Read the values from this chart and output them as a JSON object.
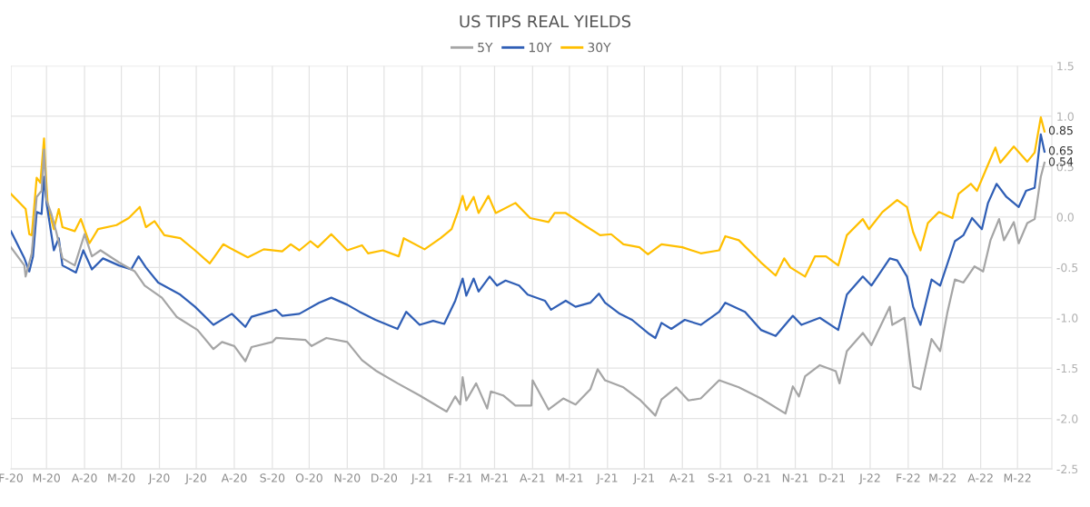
{
  "chart_data": {
    "type": "line",
    "title": "US TIPS REAL YIELDS",
    "legend": "top",
    "grid": true,
    "marker": "none",
    "line_style": "solid",
    "xlim": [
      "2020-02-01",
      "2022-05-29"
    ],
    "xticks": [
      {
        "value": "2020-02-01",
        "label": "F-20"
      },
      {
        "value": "2020-03-01",
        "label": "M-20"
      },
      {
        "value": "2020-04-01",
        "label": "A-20"
      },
      {
        "value": "2020-05-01",
        "label": "M-20"
      },
      {
        "value": "2020-06-01",
        "label": "J-20"
      },
      {
        "value": "2020-07-01",
        "label": "J-20"
      },
      {
        "value": "2020-08-01",
        "label": "A-20"
      },
      {
        "value": "2020-09-01",
        "label": "S-20"
      },
      {
        "value": "2020-10-01",
        "label": "O-20"
      },
      {
        "value": "2020-11-01",
        "label": "N-20"
      },
      {
        "value": "2020-12-01",
        "label": "D-20"
      },
      {
        "value": "2021-01-01",
        "label": "J-21"
      },
      {
        "value": "2021-02-01",
        "label": "F-21"
      },
      {
        "value": "2021-03-01",
        "label": "M-21"
      },
      {
        "value": "2021-04-01",
        "label": "A-21"
      },
      {
        "value": "2021-05-01",
        "label": "M-21"
      },
      {
        "value": "2021-06-01",
        "label": "J-21"
      },
      {
        "value": "2021-07-01",
        "label": "J-21"
      },
      {
        "value": "2021-08-01",
        "label": "A-21"
      },
      {
        "value": "2021-09-01",
        "label": "S-21"
      },
      {
        "value": "2021-10-01",
        "label": "O-21"
      },
      {
        "value": "2021-11-01",
        "label": "N-21"
      },
      {
        "value": "2021-12-01",
        "label": "D-21"
      },
      {
        "value": "2022-01-01",
        "label": "J-22"
      },
      {
        "value": "2022-02-01",
        "label": "F-22"
      },
      {
        "value": "2022-03-01",
        "label": "M-22"
      },
      {
        "value": "2022-04-01",
        "label": "A-22"
      },
      {
        "value": "2022-05-01",
        "label": "M-22"
      }
    ],
    "ylim": [
      -2.5,
      1.5
    ],
    "yticks": [
      {
        "value": -2.5,
        "label": "-2.5"
      },
      {
        "value": -2,
        "label": "-2.0"
      },
      {
        "value": -1.5,
        "label": "-1.5"
      },
      {
        "value": -1,
        "label": "-1.0"
      },
      {
        "value": -0.5,
        "label": "-0.5"
      },
      {
        "value": 0,
        "label": "0.0"
      },
      {
        "value": 0.5,
        "label": "0.5"
      },
      {
        "value": 1,
        "label": "1.0"
      },
      {
        "value": 1.5,
        "label": "1.5"
      }
    ],
    "annotations": [
      {
        "text": "0.85",
        "x": "2022-05-23",
        "y": 0.85
      },
      {
        "text": "0.65",
        "x": "2022-05-23",
        "y": 0.65
      },
      {
        "text": "0.54",
        "x": "2022-05-23",
        "y": 0.54
      }
    ],
    "series": [
      {
        "name": "5Y",
        "color": "#a5a5a5",
        "x": [
          "2020-02-01",
          "2020-02-12",
          "2020-02-13",
          "2020-02-18",
          "2020-02-22",
          "2020-02-26",
          "2020-02-28",
          "2020-03-01",
          "2020-03-05",
          "2020-03-09",
          "2020-03-14",
          "2020-03-24",
          "2020-04-01",
          "2020-04-07",
          "2020-04-14",
          "2020-04-29",
          "2020-05-12",
          "2020-05-20",
          "2020-06-03",
          "2020-06-15",
          "2020-07-02",
          "2020-07-15",
          "2020-07-22",
          "2020-08-01",
          "2020-08-10",
          "2020-08-15",
          "2020-09-01",
          "2020-09-04",
          "2020-09-28",
          "2020-10-03",
          "2020-10-15",
          "2020-11-01",
          "2020-11-13",
          "2020-11-25",
          "2020-12-12",
          "2020-12-30",
          "2021-01-21",
          "2021-01-28",
          "2021-02-01",
          "2021-02-03",
          "2021-02-06",
          "2021-02-14",
          "2021-02-23",
          "2021-02-26",
          "2021-03-08",
          "2021-03-18",
          "2021-03-31",
          "2021-04-01",
          "2021-04-14",
          "2021-04-26",
          "2021-05-06",
          "2021-05-18",
          "2021-05-24",
          "2021-05-30",
          "2021-06-14",
          "2021-06-28",
          "2021-07-10",
          "2021-07-15",
          "2021-07-27",
          "2021-08-06",
          "2021-08-16",
          "2021-08-31",
          "2021-09-16",
          "2021-10-04",
          "2021-10-24",
          "2021-10-30",
          "2021-11-04",
          "2021-11-09",
          "2021-11-21",
          "2021-12-04",
          "2021-12-07",
          "2021-12-13",
          "2021-12-26",
          "2022-01-02",
          "2022-01-17",
          "2022-01-19",
          "2022-01-29",
          "2022-02-05",
          "2022-02-11",
          "2022-02-20",
          "2022-02-27",
          "2022-03-05",
          "2022-03-11",
          "2022-03-18",
          "2022-03-27",
          "2022-04-03",
          "2022-04-09",
          "2022-04-16",
          "2022-04-20",
          "2022-04-28",
          "2022-05-02",
          "2022-05-09",
          "2022-05-15",
          "2022-05-20",
          "2022-05-23"
        ],
        "values": [
          -0.3,
          -0.48,
          -0.59,
          -0.36,
          0.2,
          0.26,
          0.67,
          0.17,
          0.03,
          -0.15,
          -0.41,
          -0.48,
          -0.17,
          -0.39,
          -0.33,
          -0.45,
          -0.54,
          -0.68,
          -0.8,
          -0.99,
          -1.12,
          -1.31,
          -1.24,
          -1.28,
          -1.43,
          -1.29,
          -1.24,
          -1.2,
          -1.22,
          -1.28,
          -1.2,
          -1.24,
          -1.42,
          -1.53,
          -1.65,
          -1.77,
          -1.93,
          -1.78,
          -1.86,
          -1.59,
          -1.82,
          -1.65,
          -1.9,
          -1.73,
          -1.77,
          -1.87,
          -1.87,
          -1.62,
          -1.91,
          -1.8,
          -1.86,
          -1.71,
          -1.51,
          -1.62,
          -1.69,
          -1.82,
          -1.97,
          -1.81,
          -1.69,
          -1.82,
          -1.8,
          -1.62,
          -1.69,
          -1.8,
          -1.95,
          -1.68,
          -1.78,
          -1.58,
          -1.47,
          -1.53,
          -1.65,
          -1.33,
          -1.15,
          -1.27,
          -0.89,
          -1.07,
          -1.0,
          -1.68,
          -1.71,
          -1.21,
          -1.33,
          -0.94,
          -0.62,
          -0.65,
          -0.49,
          -0.54,
          -0.23,
          -0.02,
          -0.23,
          -0.05,
          -0.26,
          -0.06,
          -0.02,
          0.4,
          0.54
        ]
      },
      {
        "name": "10Y",
        "color": "#2f5eb5",
        "x": [
          "2020-02-01",
          "2020-02-12",
          "2020-02-16",
          "2020-02-19",
          "2020-02-22",
          "2020-02-26",
          "2020-02-28",
          "2020-03-01",
          "2020-03-07",
          "2020-03-11",
          "2020-03-14",
          "2020-03-25",
          "2020-03-31",
          "2020-04-07",
          "2020-04-16",
          "2020-04-29",
          "2020-05-09",
          "2020-05-15",
          "2020-05-21",
          "2020-05-31",
          "2020-06-18",
          "2020-06-30",
          "2020-07-15",
          "2020-07-30",
          "2020-08-10",
          "2020-08-15",
          "2020-09-04",
          "2020-09-09",
          "2020-09-23",
          "2020-10-09",
          "2020-10-19",
          "2020-11-01",
          "2020-11-11",
          "2020-11-24",
          "2020-12-12",
          "2020-12-19",
          "2020-12-30",
          "2021-01-10",
          "2021-01-19",
          "2021-01-28",
          "2021-02-03",
          "2021-02-06",
          "2021-02-12",
          "2021-02-16",
          "2021-02-25",
          "2021-03-03",
          "2021-03-10",
          "2021-03-21",
          "2021-03-28",
          "2021-04-11",
          "2021-04-16",
          "2021-04-28",
          "2021-05-06",
          "2021-05-18",
          "2021-05-25",
          "2021-05-30",
          "2021-06-11",
          "2021-06-21",
          "2021-07-05",
          "2021-07-10",
          "2021-07-15",
          "2021-07-23",
          "2021-08-03",
          "2021-08-16",
          "2021-08-31",
          "2021-09-05",
          "2021-09-21",
          "2021-10-04",
          "2021-10-16",
          "2021-10-30",
          "2021-11-06",
          "2021-11-21",
          "2021-12-06",
          "2021-12-13",
          "2021-12-26",
          "2022-01-02",
          "2022-01-17",
          "2022-01-23",
          "2022-01-31",
          "2022-02-05",
          "2022-02-11",
          "2022-02-20",
          "2022-02-27",
          "2022-03-11",
          "2022-03-18",
          "2022-03-25",
          "2022-04-02",
          "2022-04-07",
          "2022-04-14",
          "2022-04-22",
          "2022-05-02",
          "2022-05-08",
          "2022-05-15",
          "2022-05-20",
          "2022-05-23"
        ],
        "values": [
          -0.14,
          -0.41,
          -0.54,
          -0.39,
          0.05,
          0.03,
          0.4,
          0.14,
          -0.33,
          -0.21,
          -0.48,
          -0.55,
          -0.33,
          -0.52,
          -0.41,
          -0.48,
          -0.52,
          -0.39,
          -0.5,
          -0.65,
          -0.77,
          -0.89,
          -1.07,
          -0.96,
          -1.09,
          -0.99,
          -0.92,
          -0.98,
          -0.96,
          -0.85,
          -0.8,
          -0.87,
          -0.94,
          -1.02,
          -1.11,
          -0.94,
          -1.07,
          -1.03,
          -1.06,
          -0.83,
          -0.61,
          -0.78,
          -0.61,
          -0.74,
          -0.59,
          -0.68,
          -0.63,
          -0.68,
          -0.77,
          -0.83,
          -0.92,
          -0.83,
          -0.89,
          -0.85,
          -0.76,
          -0.85,
          -0.96,
          -1.02,
          -1.16,
          -1.2,
          -1.05,
          -1.11,
          -1.02,
          -1.07,
          -0.94,
          -0.85,
          -0.94,
          -1.12,
          -1.18,
          -0.98,
          -1.07,
          -1.0,
          -1.12,
          -0.77,
          -0.59,
          -0.68,
          -0.41,
          -0.43,
          -0.59,
          -0.89,
          -1.07,
          -0.62,
          -0.68,
          -0.24,
          -0.18,
          -0.01,
          -0.12,
          0.14,
          0.33,
          0.2,
          0.1,
          0.26,
          0.29,
          0.82,
          0.65
        ]
      },
      {
        "name": "30Y",
        "color": "#ffbf00",
        "x": [
          "2020-02-01",
          "2020-02-13",
          "2020-02-16",
          "2020-02-18",
          "2020-02-22",
          "2020-02-25",
          "2020-02-28",
          "2020-02-29",
          "2020-03-02",
          "2020-03-07",
          "2020-03-11",
          "2020-03-14",
          "2020-03-24",
          "2020-03-29",
          "2020-04-05",
          "2020-04-12",
          "2020-04-27",
          "2020-05-07",
          "2020-05-16",
          "2020-05-21",
          "2020-05-28",
          "2020-06-05",
          "2020-06-18",
          "2020-06-30",
          "2020-07-12",
          "2020-07-23",
          "2020-08-01",
          "2020-08-12",
          "2020-08-25",
          "2020-09-09",
          "2020-09-16",
          "2020-09-23",
          "2020-10-02",
          "2020-10-08",
          "2020-10-19",
          "2020-11-01",
          "2020-11-13",
          "2020-11-18",
          "2020-11-30",
          "2020-12-13",
          "2020-12-17",
          "2021-01-03",
          "2021-01-16",
          "2021-01-25",
          "2021-01-30",
          "2021-02-03",
          "2021-02-06",
          "2021-02-12",
          "2021-02-16",
          "2021-02-24",
          "2021-03-02",
          "2021-03-18",
          "2021-03-30",
          "2021-04-14",
          "2021-04-19",
          "2021-04-28",
          "2021-05-13",
          "2021-05-26",
          "2021-06-04",
          "2021-06-14",
          "2021-06-27",
          "2021-07-04",
          "2021-07-15",
          "2021-08-01",
          "2021-08-16",
          "2021-08-31",
          "2021-09-05",
          "2021-09-16",
          "2021-10-04",
          "2021-10-16",
          "2021-10-23",
          "2021-10-28",
          "2021-11-09",
          "2021-11-17",
          "2021-11-26",
          "2021-12-06",
          "2021-12-13",
          "2021-12-26",
          "2021-12-31",
          "2022-01-11",
          "2022-01-23",
          "2022-01-31",
          "2022-02-05",
          "2022-02-11",
          "2022-02-17",
          "2022-02-26",
          "2022-03-09",
          "2022-03-14",
          "2022-03-24",
          "2022-03-29",
          "2022-04-07",
          "2022-04-13",
          "2022-04-17",
          "2022-04-28",
          "2022-05-09",
          "2022-05-15",
          "2022-05-20",
          "2022-05-23"
        ],
        "values": [
          0.23,
          0.08,
          -0.17,
          -0.18,
          0.39,
          0.34,
          0.78,
          0.52,
          0.11,
          -0.12,
          0.08,
          -0.1,
          -0.14,
          -0.02,
          -0.26,
          -0.12,
          -0.08,
          -0.01,
          0.1,
          -0.1,
          -0.04,
          -0.18,
          -0.21,
          -0.33,
          -0.46,
          -0.27,
          -0.33,
          -0.4,
          -0.32,
          -0.34,
          -0.27,
          -0.33,
          -0.24,
          -0.3,
          -0.17,
          -0.33,
          -0.28,
          -0.36,
          -0.33,
          -0.39,
          -0.21,
          -0.32,
          -0.21,
          -0.12,
          0.05,
          0.21,
          0.07,
          0.2,
          0.04,
          0.21,
          0.04,
          0.14,
          -0.01,
          -0.05,
          0.04,
          0.04,
          -0.08,
          -0.18,
          -0.17,
          -0.27,
          -0.3,
          -0.37,
          -0.27,
          -0.3,
          -0.36,
          -0.33,
          -0.19,
          -0.23,
          -0.45,
          -0.58,
          -0.41,
          -0.5,
          -0.59,
          -0.39,
          -0.39,
          -0.48,
          -0.18,
          -0.02,
          -0.12,
          0.05,
          0.17,
          0.1,
          -0.15,
          -0.33,
          -0.06,
          0.05,
          -0.01,
          0.23,
          0.33,
          0.26,
          0.52,
          0.69,
          0.54,
          0.7,
          0.55,
          0.64,
          0.99,
          0.85
        ]
      }
    ]
  }
}
